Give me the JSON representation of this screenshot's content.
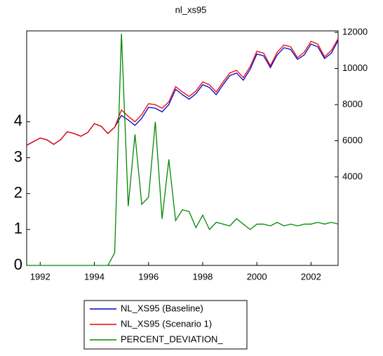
{
  "chart_data": {
    "type": "line",
    "title": "nl_xs95",
    "x": [
      1991.5,
      1991.75,
      1992,
      1992.25,
      1992.5,
      1992.75,
      1993,
      1993.25,
      1993.5,
      1993.75,
      1994,
      1994.25,
      1994.5,
      1994.75,
      1995,
      1995.25,
      1995.5,
      1995.75,
      1996,
      1996.25,
      1996.5,
      1996.75,
      1997,
      1997.25,
      1997.5,
      1997.75,
      1998,
      1998.25,
      1998.5,
      1998.75,
      1999,
      1999.25,
      1999.5,
      1999.75,
      2000,
      2000.25,
      2000.5,
      2000.75,
      2001,
      2001.25,
      2001.5,
      2001.75,
      2002,
      2002.25,
      2002.5,
      2002.75,
      2003
    ],
    "series": [
      {
        "name": "NL_XS95 (Baseline)",
        "color": "#0000cc",
        "axis": "y2",
        "values": [
          5750,
          5950,
          6150,
          6050,
          5800,
          6050,
          6500,
          6400,
          6250,
          6450,
          6950,
          6800,
          6400,
          6750,
          7400,
          7150,
          6850,
          7250,
          7850,
          7800,
          7600,
          8000,
          8850,
          8550,
          8300,
          8600,
          9100,
          8950,
          8550,
          9100,
          9600,
          9750,
          9350,
          9950,
          10800,
          10700,
          10050,
          10750,
          11150,
          11050,
          10500,
          10750,
          11350,
          11200,
          10550,
          10850,
          11550
        ]
      },
      {
        "name": "NL_XS95 (Scenario 1)",
        "color": "#ee0000",
        "axis": "y2",
        "values": [
          5750,
          5950,
          6150,
          6050,
          5800,
          6050,
          6500,
          6400,
          6250,
          6450,
          6950,
          6800,
          6400,
          6750,
          7700,
          7350,
          7050,
          7450,
          8050,
          8000,
          7800,
          8150,
          9000,
          8700,
          8450,
          8750,
          9250,
          9100,
          8700,
          9250,
          9750,
          9900,
          9500,
          10100,
          10950,
          10850,
          10150,
          10900,
          11300,
          11200,
          10600,
          10900,
          11500,
          11350,
          10650,
          11000,
          11650
        ]
      },
      {
        "name": "PERCENT_DEVIATION_",
        "color": "#008800",
        "values": [
          0,
          0,
          0,
          0,
          0,
          0,
          0,
          0,
          0,
          0,
          0,
          0,
          0,
          0.35,
          6.45,
          1.65,
          3.65,
          1.7,
          1.9,
          4.0,
          1.3,
          2.95,
          1.25,
          1.55,
          1.5,
          1.05,
          1.4,
          1.0,
          1.2,
          1.15,
          1.1,
          1.3,
          1.15,
          1.0,
          1.15,
          1.15,
          1.1,
          1.2,
          1.1,
          1.15,
          1.1,
          1.15,
          1.15,
          1.2,
          1.15,
          1.2,
          1.15
        ]
      }
    ],
    "xlim": [
      1991.5,
      2003
    ],
    "xticks": [
      1992,
      1994,
      1996,
      1998,
      2000,
      2002
    ],
    "ylim": [
      0,
      6.53
    ],
    "yticks": [
      0,
      1,
      2,
      3,
      4
    ],
    "y2lim": [
      -900,
      12080
    ],
    "y2ticks": [
      4000,
      6000,
      8000,
      10000,
      12000
    ]
  }
}
